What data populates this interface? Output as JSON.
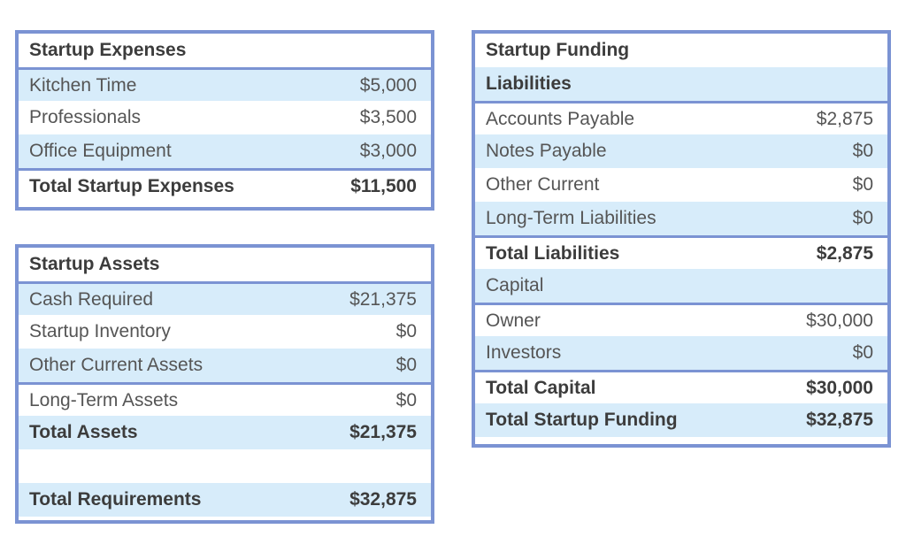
{
  "startup_expenses": {
    "title": "Startup Expenses",
    "rows": [
      {
        "label": "Kitchen Time",
        "value": "$5,000"
      },
      {
        "label": "Professionals",
        "value": "$3,500"
      },
      {
        "label": "Office Equipment",
        "value": "$3,000"
      }
    ],
    "total": {
      "label": "Total Startup Expenses",
      "value": "$11,500"
    }
  },
  "startup_assets": {
    "title": "Startup Assets",
    "rows": [
      {
        "label": "Cash Required",
        "value": "$21,375"
      },
      {
        "label": "Startup Inventory",
        "value": "$0"
      },
      {
        "label": "Other Current Assets",
        "value": "$0"
      },
      {
        "label": "Long-Term Assets",
        "value": "$0"
      }
    ],
    "total_assets": {
      "label": "Total Assets",
      "value": "$21,375"
    },
    "total_requirements": {
      "label": "Total Requirements",
      "value": "$32,875"
    }
  },
  "startup_funding": {
    "title": "Startup Funding",
    "liabilities_heading": "Liabilities",
    "liabilities": [
      {
        "label": "Accounts Payable",
        "value": "$2,875"
      },
      {
        "label": "Notes Payable",
        "value": "$0"
      },
      {
        "label": "Other Current",
        "value": "$0"
      },
      {
        "label": "Long-Term Liabilities",
        "value": "$0"
      }
    ],
    "total_liabilities": {
      "label": "Total Liabilities",
      "value": "$2,875"
    },
    "capital_heading": "Capital",
    "capital": [
      {
        "label": "Owner",
        "value": "$30,000"
      },
      {
        "label": "Investors",
        "value": "$0"
      }
    ],
    "total_capital": {
      "label": "Total Capital",
      "value": "$30,000"
    },
    "total_funding": {
      "label": "Total Startup Funding",
      "value": "$32,875"
    }
  },
  "colors": {
    "border": "#7b93d3",
    "row_shade": "#d7ecfa",
    "text": "#555555",
    "bold_text": "#3c3c3c"
  }
}
